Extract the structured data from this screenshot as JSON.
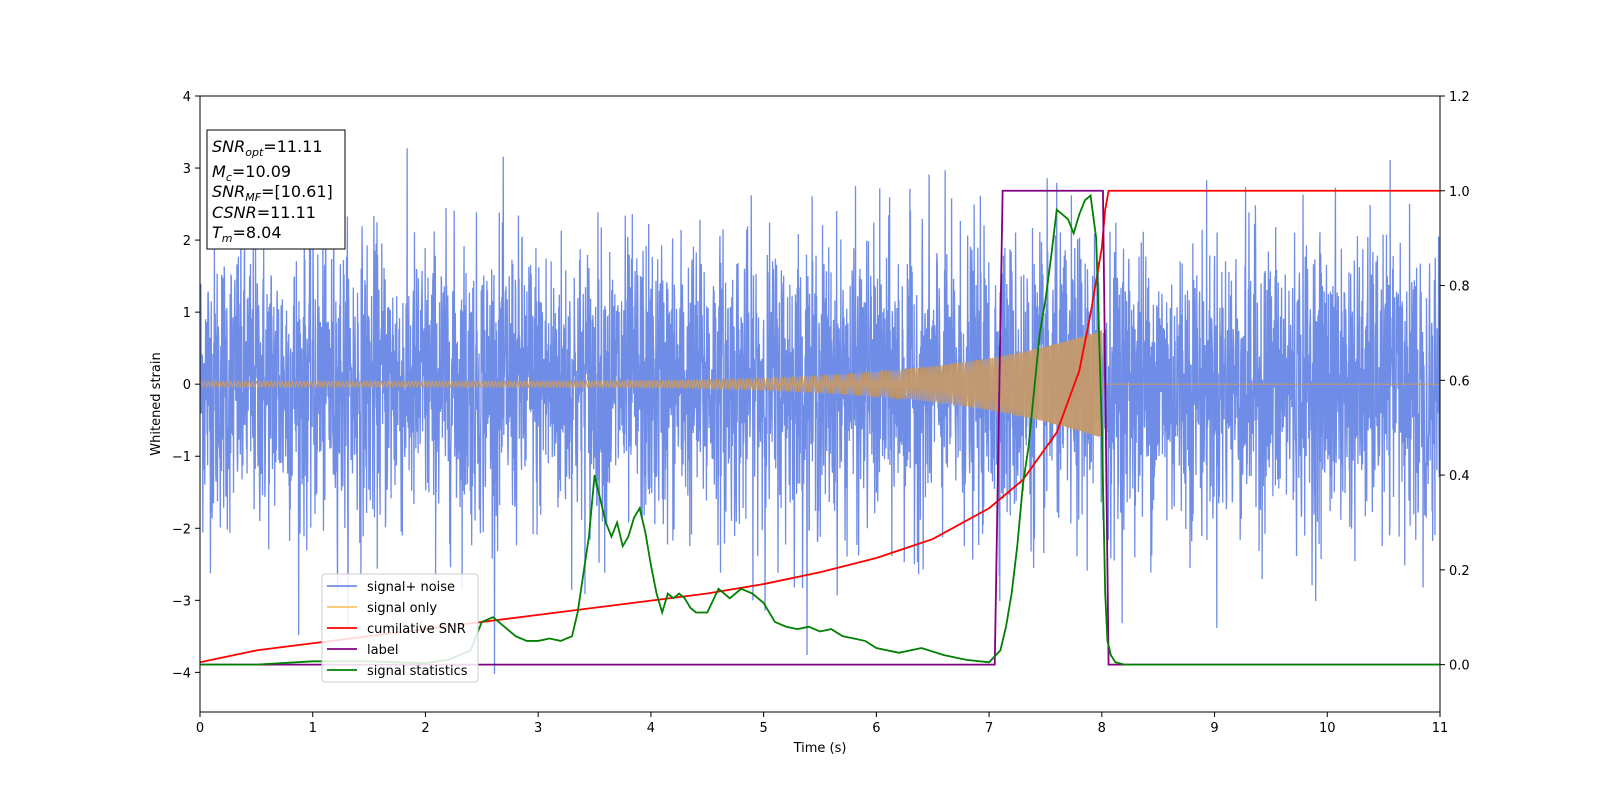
{
  "chart_data": {
    "type": "line",
    "xlabel": "Time (s)",
    "ylabel": "Whitened strain",
    "xlim": [
      0,
      11
    ],
    "ylim_left": [
      -4.55,
      4.0
    ],
    "ylim_right": [
      -0.1,
      1.2
    ],
    "x_ticks": [
      "0",
      "1",
      "2",
      "3",
      "4",
      "5",
      "6",
      "7",
      "8",
      "9",
      "10",
      "11"
    ],
    "y_ticks_left": [
      "4",
      "3",
      "2",
      "1",
      "0",
      "−1",
      "−2",
      "−3",
      "−4"
    ],
    "y_ticks_right": [
      "1.2",
      "1.0",
      "0.8",
      "0.6",
      "0.4",
      "0.2",
      "0.0"
    ],
    "info_box": {
      "lines": [
        {
          "base": "SNR",
          "sub": "opt",
          "value": "=11.11"
        },
        {
          "base": "M",
          "sub": "c",
          "value": "=10.09"
        },
        {
          "base": "SNR",
          "sub": "MF",
          "value": "=[10.61]"
        },
        {
          "base": "CSNR",
          "sub": "",
          "value": "=11.11"
        },
        {
          "base": "T",
          "sub": "m",
          "value": "=8.04"
        }
      ]
    },
    "legend": {
      "placement": "lower-left",
      "items": [
        {
          "label": "signal+ noise",
          "color": "#6f8ce6"
        },
        {
          "label": "signal only",
          "color": "#f7c66b"
        },
        {
          "label": "cumilative SNR",
          "color": "#ff0000"
        },
        {
          "label": "label",
          "color": "#800080"
        },
        {
          "label": "signal statistics",
          "color": "#008000"
        }
      ]
    },
    "series": [
      {
        "name": "signal+ noise",
        "axis": "left",
        "color": "#6f8ce6",
        "description_values": {
          "std": 1.0,
          "peak_max": 3.3,
          "peak_min": -4.2,
          "t_start": 0,
          "t_end": 11
        }
      },
      {
        "name": "signal only",
        "axis": "left",
        "color": "#c49a6c",
        "description_values": {
          "t_start": 0,
          "t_merger": 8.0,
          "amplitude_at_start": 0.04,
          "amplitude_at_merger": 0.75,
          "freq_start": 30
        }
      },
      {
        "name": "cumilative SNR",
        "axis": "right",
        "color": "#ff0000",
        "x": [
          0,
          0.5,
          1,
          1.5,
          2,
          2.5,
          3,
          3.5,
          4,
          4.5,
          5,
          5.5,
          6,
          6.5,
          7,
          7.3,
          7.6,
          7.8,
          7.9,
          8.0,
          8.03,
          8.06,
          11
        ],
        "y": [
          0.005,
          0.03,
          0.045,
          0.06,
          0.075,
          0.09,
          0.105,
          0.12,
          0.135,
          0.15,
          0.17,
          0.195,
          0.225,
          0.265,
          0.33,
          0.39,
          0.49,
          0.62,
          0.74,
          0.88,
          0.96,
          1.0,
          1.0
        ]
      },
      {
        "name": "label",
        "axis": "right",
        "color": "#800080",
        "x": [
          0,
          7.05,
          7.12,
          8.01,
          8.06,
          11
        ],
        "y": [
          0,
          0,
          1,
          1,
          0,
          0
        ]
      },
      {
        "name": "signal statistics",
        "axis": "right",
        "color": "#008000",
        "x": [
          0,
          0.5,
          1,
          1.5,
          2,
          2.2,
          2.4,
          2.5,
          2.6,
          2.7,
          2.8,
          2.9,
          3.0,
          3.1,
          3.2,
          3.3,
          3.35,
          3.45,
          3.5,
          3.55,
          3.6,
          3.65,
          3.7,
          3.75,
          3.8,
          3.85,
          3.9,
          3.95,
          4.0,
          4.05,
          4.1,
          4.15,
          4.2,
          4.25,
          4.3,
          4.35,
          4.4,
          4.5,
          4.6,
          4.7,
          4.8,
          4.9,
          5.0,
          5.1,
          5.2,
          5.3,
          5.4,
          5.5,
          5.6,
          5.7,
          5.8,
          5.9,
          6.0,
          6.2,
          6.4,
          6.6,
          6.8,
          7.0,
          7.1,
          7.15,
          7.2,
          7.25,
          7.3,
          7.35,
          7.4,
          7.45,
          7.5,
          7.55,
          7.6,
          7.65,
          7.7,
          7.75,
          7.8,
          7.85,
          7.9,
          7.95,
          8.0,
          8.03,
          8.05,
          8.08,
          8.12,
          8.2,
          8.3,
          8.5,
          11
        ],
        "y": [
          0.0,
          0.0,
          0.007,
          0.007,
          0.003,
          0.01,
          0.03,
          0.09,
          0.1,
          0.08,
          0.06,
          0.05,
          0.05,
          0.055,
          0.05,
          0.06,
          0.11,
          0.27,
          0.4,
          0.35,
          0.3,
          0.27,
          0.3,
          0.25,
          0.27,
          0.31,
          0.33,
          0.28,
          0.21,
          0.15,
          0.11,
          0.15,
          0.14,
          0.15,
          0.14,
          0.12,
          0.11,
          0.11,
          0.16,
          0.14,
          0.16,
          0.15,
          0.13,
          0.09,
          0.08,
          0.075,
          0.08,
          0.07,
          0.075,
          0.06,
          0.055,
          0.05,
          0.035,
          0.025,
          0.035,
          0.02,
          0.01,
          0.005,
          0.03,
          0.08,
          0.15,
          0.25,
          0.38,
          0.46,
          0.58,
          0.7,
          0.77,
          0.86,
          0.96,
          0.95,
          0.94,
          0.91,
          0.95,
          0.98,
          0.99,
          0.9,
          0.5,
          0.15,
          0.05,
          0.02,
          0.005,
          0.0,
          0.0,
          0.0,
          0.0
        ]
      }
    ]
  }
}
